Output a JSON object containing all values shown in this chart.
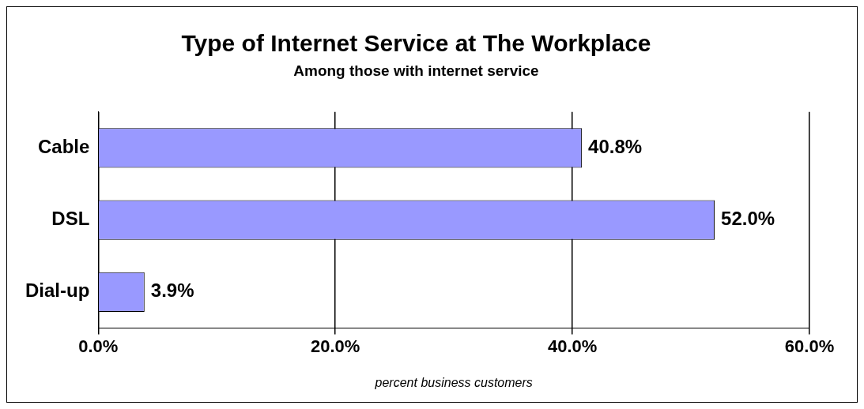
{
  "chart_data": {
    "type": "bar",
    "orientation": "horizontal",
    "title": "Type of Internet Service at The Workplace",
    "subtitle": "Among those with internet service",
    "xlabel": "percent business customers",
    "categories": [
      "Cable",
      "DSL",
      "Dial-up"
    ],
    "values": [
      40.8,
      52.0,
      3.9
    ],
    "color": "#9999ff",
    "value_labels": [
      "40.8%",
      "52.0%",
      "3.9%"
    ],
    "xlim": [
      0,
      60
    ],
    "xticks": [
      {
        "value": 0,
        "label": "0.0%"
      },
      {
        "value": 20,
        "label": "20.0%"
      },
      {
        "value": 40,
        "label": "40.0%"
      },
      {
        "value": 60,
        "label": "60.0%"
      }
    ],
    "grid": "x",
    "legend": false
  }
}
